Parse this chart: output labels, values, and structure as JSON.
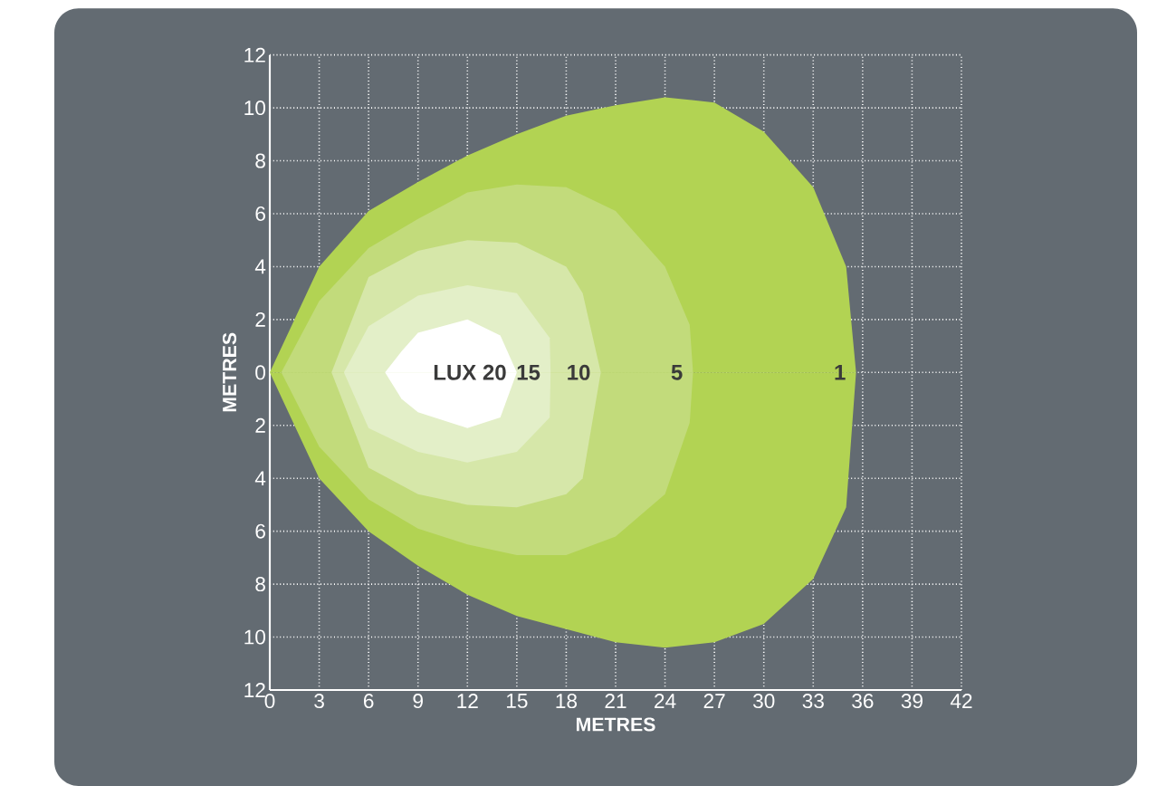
{
  "chart_data": {
    "type": "area",
    "xlabel": "METRES",
    "ylabel": "METRES",
    "xlim": [
      0,
      42
    ],
    "ylim": [
      -12,
      12
    ],
    "xticks": [
      0,
      3,
      6,
      9,
      12,
      15,
      18,
      21,
      24,
      27,
      30,
      33,
      36,
      39,
      42
    ],
    "yticks": [
      {
        "value": -12,
        "label": "12"
      },
      {
        "value": -10,
        "label": "10"
      },
      {
        "value": -8,
        "label": "8"
      },
      {
        "value": -6,
        "label": "6"
      },
      {
        "value": -4,
        "label": "4"
      },
      {
        "value": -2,
        "label": "2"
      },
      0,
      2,
      4,
      6,
      8,
      10,
      12
    ],
    "grid": true,
    "series": [
      {
        "name": "1",
        "color": "#b2d353",
        "x": [
          0,
          3,
          6,
          9,
          12,
          15,
          18,
          21,
          24,
          27,
          30,
          33,
          35,
          35.6
        ],
        "values": [
          0,
          4.0,
          6.1,
          7.2,
          8.2,
          9.0,
          9.7,
          10.1,
          10.4,
          10.2,
          9.1,
          7.0,
          4.0,
          0
        ]
      },
      {
        "color": "#b2d353",
        "x": [
          0,
          3,
          6,
          9,
          12,
          15,
          18,
          21,
          24,
          27,
          30,
          33,
          35,
          35.6
        ],
        "values": [
          0,
          -4.0,
          -6.0,
          -7.3,
          -8.4,
          -9.2,
          -9.7,
          -10.2,
          -10.4,
          -10.2,
          -9.5,
          -7.8,
          -5.1,
          0
        ]
      },
      {
        "name": "5",
        "color": "#c2db7b",
        "x": [
          0.7,
          3,
          6,
          9,
          12,
          15,
          18,
          21,
          24,
          25.5,
          25.7
        ],
        "values": [
          0,
          2.7,
          4.7,
          5.8,
          6.8,
          7.1,
          7.0,
          6.1,
          4.0,
          1.8,
          0
        ]
      },
      {
        "color": "#c2db7b",
        "x": [
          0.7,
          3,
          6,
          9,
          12,
          15,
          18,
          21,
          24,
          25.5,
          25.7
        ],
        "values": [
          0,
          -2.8,
          -4.8,
          -5.9,
          -6.5,
          -6.9,
          -6.9,
          -6.2,
          -4.6,
          -1.9,
          0
        ]
      },
      {
        "name": "10",
        "color": "#d6e7a9",
        "x": [
          3.75,
          6,
          9,
          12,
          15,
          18,
          19,
          20.1
        ],
        "values": [
          0,
          3.6,
          4.6,
          5.0,
          4.9,
          4.0,
          3.0,
          0
        ]
      },
      {
        "color": "#d6e7a9",
        "x": [
          3.75,
          6,
          9,
          12,
          15,
          18,
          19,
          20.1
        ],
        "values": [
          0,
          -3.6,
          -4.6,
          -5.0,
          -5.1,
          -4.6,
          -4.0,
          0
        ]
      },
      {
        "name": "15",
        "color": "#e3efc8",
        "x": [
          4.5,
          6,
          9,
          12,
          15,
          17,
          17.05
        ],
        "values": [
          0,
          1.75,
          2.9,
          3.3,
          3.0,
          1.3,
          0
        ]
      },
      {
        "color": "#e3efc8",
        "x": [
          4.5,
          6,
          9,
          12,
          15,
          17,
          17.05
        ],
        "values": [
          0,
          -2.1,
          -3.0,
          -3.4,
          -3.0,
          -1.7,
          0
        ]
      },
      {
        "name": "LUX 20",
        "color": "#ffffff",
        "x": [
          7.0,
          8,
          9,
          12,
          14,
          15.0
        ],
        "values": [
          0,
          0.8,
          1.5,
          2.0,
          1.4,
          0
        ]
      },
      {
        "color": "#ffffff",
        "x": [
          7.0,
          8,
          9,
          12,
          14,
          15.0
        ],
        "values": [
          0,
          -1.0,
          -1.5,
          -2.1,
          -1.7,
          0
        ]
      }
    ]
  }
}
